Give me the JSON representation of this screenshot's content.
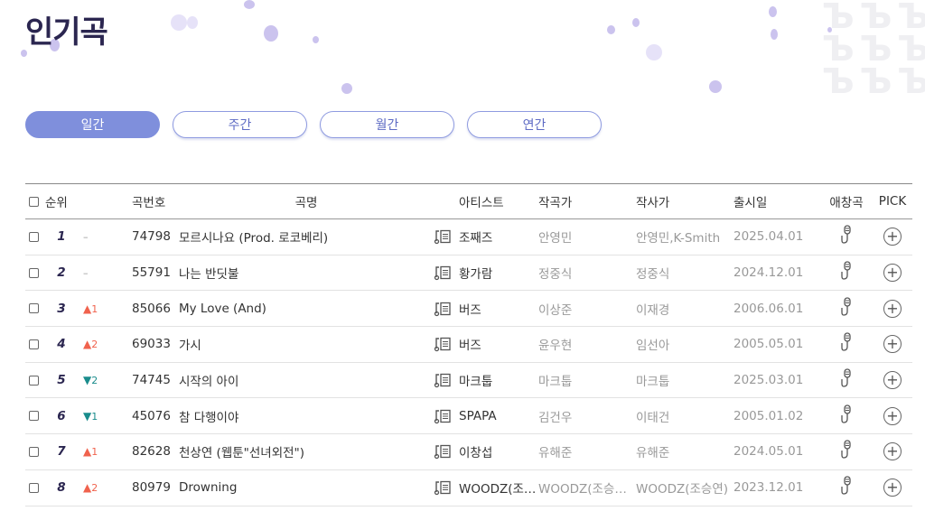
{
  "page_title": "인기곡",
  "tabs": [
    {
      "label": "일간",
      "active": true
    },
    {
      "label": "주간",
      "active": false
    },
    {
      "label": "월간",
      "active": false
    },
    {
      "label": "연간",
      "active": false
    }
  ],
  "colors": {
    "title": "#2b2650",
    "accent": "#7f8fdc",
    "up": "#f0624d",
    "down": "#1a8c8c"
  },
  "table": {
    "headers": {
      "rank": "순위",
      "number": "곡번호",
      "title": "곡명",
      "artist": "아티스트",
      "composer": "작곡가",
      "lyricist": "작사가",
      "release": "출시일",
      "favorite": "애창곡",
      "pick": "PICK"
    },
    "rows": [
      {
        "rank": "1",
        "change": "–",
        "dir": "same",
        "number": "74798",
        "title": "모르시나요 (Prod. 로코베리)",
        "artist": "조째즈",
        "composer": "안영민",
        "lyricist": "안영민,K-Smith",
        "release": "2025.04.01"
      },
      {
        "rank": "2",
        "change": "–",
        "dir": "same",
        "number": "55791",
        "title": "나는 반딧불",
        "artist": "황가람",
        "composer": "정중식",
        "lyricist": "정중식",
        "release": "2024.12.01"
      },
      {
        "rank": "3",
        "change": "1",
        "dir": "up",
        "number": "85066",
        "title": "My Love (And)",
        "artist": "버즈",
        "composer": "이상준",
        "lyricist": "이재경",
        "release": "2006.06.01"
      },
      {
        "rank": "4",
        "change": "2",
        "dir": "up",
        "number": "69033",
        "title": "가시",
        "artist": "버즈",
        "composer": "윤우현",
        "lyricist": "임선아",
        "release": "2005.05.01"
      },
      {
        "rank": "5",
        "change": "2",
        "dir": "down",
        "number": "74745",
        "title": "시작의 아이",
        "artist": "마크툽",
        "composer": "마크툽",
        "lyricist": "마크툽",
        "release": "2025.03.01"
      },
      {
        "rank": "6",
        "change": "1",
        "dir": "down",
        "number": "45076",
        "title": "참 다행이야",
        "artist": "SPAPA",
        "composer": "김건우",
        "lyricist": "이태건",
        "release": "2005.01.02"
      },
      {
        "rank": "7",
        "change": "1",
        "dir": "up",
        "number": "82628",
        "title": "천상연 (웹툰\"선녀외전\")",
        "artist": "이창섭",
        "composer": "유해준",
        "lyricist": "유해준",
        "release": "2024.05.01"
      },
      {
        "rank": "8",
        "change": "2",
        "dir": "up",
        "number": "80979",
        "title": "Drowning",
        "artist": "WOODZ(조…",
        "composer": "WOODZ(조승…",
        "lyricist": "WOODZ(조승연)",
        "release": "2023.12.01"
      }
    ]
  }
}
